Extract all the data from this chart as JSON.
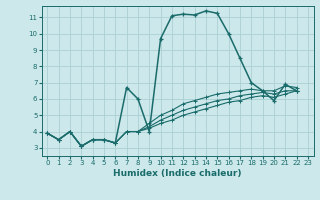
{
  "xlabel": "Humidex (Indice chaleur)",
  "bg_color": "#cce8ea",
  "grid_color": "#aad0d3",
  "line_color": "#1a6b6b",
  "xlim": [
    -0.5,
    23.5
  ],
  "ylim": [
    2.5,
    11.7
  ],
  "xticks": [
    0,
    1,
    2,
    3,
    4,
    5,
    6,
    7,
    8,
    9,
    10,
    11,
    12,
    13,
    14,
    15,
    16,
    17,
    18,
    19,
    20,
    21,
    22,
    23
  ],
  "yticks": [
    3,
    4,
    5,
    6,
    7,
    8,
    9,
    10,
    11
  ],
  "series": [
    [
      3.9,
      3.5,
      4.0,
      3.1,
      3.5,
      3.5,
      3.3,
      6.7,
      6.0,
      4.0,
      9.7,
      11.1,
      11.2,
      11.15,
      11.4,
      11.25,
      10.0,
      8.5,
      7.0,
      6.5,
      5.9,
      6.9,
      6.5,
      null
    ],
    [
      3.9,
      3.5,
      4.0,
      3.1,
      3.5,
      3.5,
      3.3,
      4.0,
      4.0,
      4.5,
      5.0,
      5.3,
      5.7,
      5.9,
      6.1,
      6.3,
      6.4,
      6.5,
      6.6,
      6.5,
      6.5,
      6.8,
      6.7,
      null
    ],
    [
      3.9,
      3.5,
      4.0,
      3.1,
      3.5,
      3.5,
      3.3,
      4.0,
      4.0,
      4.3,
      4.7,
      5.0,
      5.3,
      5.5,
      5.7,
      5.9,
      6.0,
      6.2,
      6.3,
      6.4,
      6.3,
      6.5,
      6.5,
      null
    ],
    [
      3.9,
      3.5,
      4.0,
      3.1,
      3.5,
      3.5,
      3.3,
      4.0,
      4.0,
      4.2,
      4.5,
      4.7,
      5.0,
      5.2,
      5.4,
      5.6,
      5.8,
      5.9,
      6.1,
      6.2,
      6.1,
      6.3,
      6.5,
      null
    ]
  ],
  "series_main": [
    3.9,
    3.5,
    4.0,
    3.1,
    3.5,
    3.5,
    3.3,
    6.7,
    6.0,
    4.0,
    9.7,
    11.1,
    11.2,
    11.15,
    11.4,
    11.25,
    10.0,
    8.5,
    7.0,
    6.5,
    5.9,
    6.9,
    6.5
  ]
}
